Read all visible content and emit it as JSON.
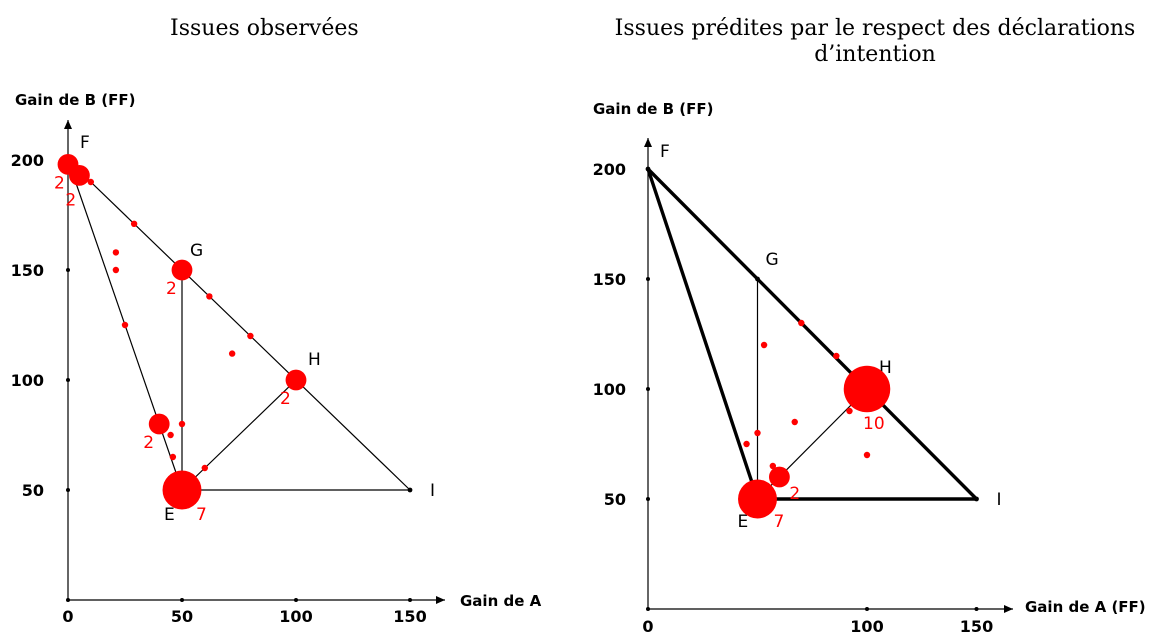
{
  "chart_data": [
    {
      "type": "scatter",
      "title": "Issues observées",
      "xlabel": "Gain de A",
      "ylabel": "Gain de B (FF)",
      "xlim": [
        0,
        150
      ],
      "ylim": [
        0,
        210
      ],
      "xticks": [
        "0",
        "50",
        "100",
        "150"
      ],
      "yticks": [
        "50",
        "100",
        "150",
        "200"
      ],
      "lines": [
        {
          "from": [
            0,
            200
          ],
          "to": [
            150,
            50
          ],
          "weight": "thin"
        },
        {
          "from": [
            0,
            200
          ],
          "to": [
            50,
            50
          ],
          "weight": "thin"
        },
        {
          "from": [
            50,
            50
          ],
          "to": [
            150,
            50
          ],
          "weight": "thin"
        },
        {
          "from": [
            50,
            150
          ],
          "to": [
            50,
            50
          ],
          "weight": "thin"
        },
        {
          "from": [
            50,
            50
          ],
          "to": [
            100,
            100
          ],
          "weight": "thin"
        }
      ],
      "named_points": [
        {
          "name": "E",
          "x": 50,
          "y": 50
        },
        {
          "name": "F",
          "x": 0,
          "y": 200
        },
        {
          "name": "G",
          "x": 50,
          "y": 150
        },
        {
          "name": "H",
          "x": 100,
          "y": 100
        },
        {
          "name": "I",
          "x": 150,
          "y": 50
        }
      ],
      "observations": [
        {
          "x": 50,
          "y": 50,
          "count": 7
        },
        {
          "x": 0,
          "y": 198,
          "count": 2
        },
        {
          "x": 5,
          "y": 193,
          "count": 2
        },
        {
          "x": 50,
          "y": 150,
          "count": 2
        },
        {
          "x": 100,
          "y": 100,
          "count": 2
        },
        {
          "x": 40,
          "y": 80,
          "count": 2
        },
        {
          "x": 10,
          "y": 190,
          "count": 1
        },
        {
          "x": 29,
          "y": 171,
          "count": 1
        },
        {
          "x": 21,
          "y": 158,
          "count": 1
        },
        {
          "x": 21,
          "y": 150,
          "count": 1
        },
        {
          "x": 25,
          "y": 125,
          "count": 1
        },
        {
          "x": 62,
          "y": 138,
          "count": 1
        },
        {
          "x": 80,
          "y": 120,
          "count": 1
        },
        {
          "x": 72,
          "y": 112,
          "count": 1
        },
        {
          "x": 50,
          "y": 80,
          "count": 1
        },
        {
          "x": 45,
          "y": 75,
          "count": 1
        },
        {
          "x": 46,
          "y": 65,
          "count": 1
        },
        {
          "x": 60,
          "y": 60,
          "count": 1
        }
      ]
    },
    {
      "type": "scatter",
      "title": "Issues prédites par le respect des déclarations d’intention",
      "xlabel": "Gain de A (FF)",
      "ylabel": "Gain de B (FF)",
      "xlim": [
        0,
        150
      ],
      "ylim": [
        0,
        210
      ],
      "xticks": [
        "0",
        "100",
        "150"
      ],
      "yticks": [
        "50",
        "100",
        "150",
        "200"
      ],
      "lines": [
        {
          "from": [
            0,
            200
          ],
          "to": [
            150,
            50
          ],
          "weight": "thick"
        },
        {
          "from": [
            0,
            200
          ],
          "to": [
            50,
            50
          ],
          "weight": "thick"
        },
        {
          "from": [
            50,
            50
          ],
          "to": [
            150,
            50
          ],
          "weight": "thick"
        },
        {
          "from": [
            50,
            150
          ],
          "to": [
            50,
            50
          ],
          "weight": "thin"
        },
        {
          "from": [
            50,
            50
          ],
          "to": [
            100,
            100
          ],
          "weight": "thin"
        }
      ],
      "named_points": [
        {
          "name": "E",
          "x": 50,
          "y": 50
        },
        {
          "name": "F",
          "x": 0,
          "y": 200
        },
        {
          "name": "G",
          "x": 50,
          "y": 150
        },
        {
          "name": "H",
          "x": 100,
          "y": 100
        },
        {
          "name": "I",
          "x": 150,
          "y": 50
        }
      ],
      "observations": [
        {
          "x": 100,
          "y": 100,
          "count": 10
        },
        {
          "x": 50,
          "y": 50,
          "count": 7
        },
        {
          "x": 60,
          "y": 60,
          "count": 2
        },
        {
          "x": 57,
          "y": 65,
          "count": 1
        },
        {
          "x": 45,
          "y": 75,
          "count": 1
        },
        {
          "x": 50,
          "y": 80,
          "count": 1
        },
        {
          "x": 53,
          "y": 120,
          "count": 1
        },
        {
          "x": 70,
          "y": 130,
          "count": 1
        },
        {
          "x": 86,
          "y": 115,
          "count": 1
        },
        {
          "x": 92,
          "y": 90,
          "count": 1
        },
        {
          "x": 67,
          "y": 85,
          "count": 1
        },
        {
          "x": 100,
          "y": 70,
          "count": 1
        }
      ]
    }
  ],
  "colors": {
    "marker": "#ff0000",
    "line": "#000000",
    "count_label": "#ff0000"
  }
}
